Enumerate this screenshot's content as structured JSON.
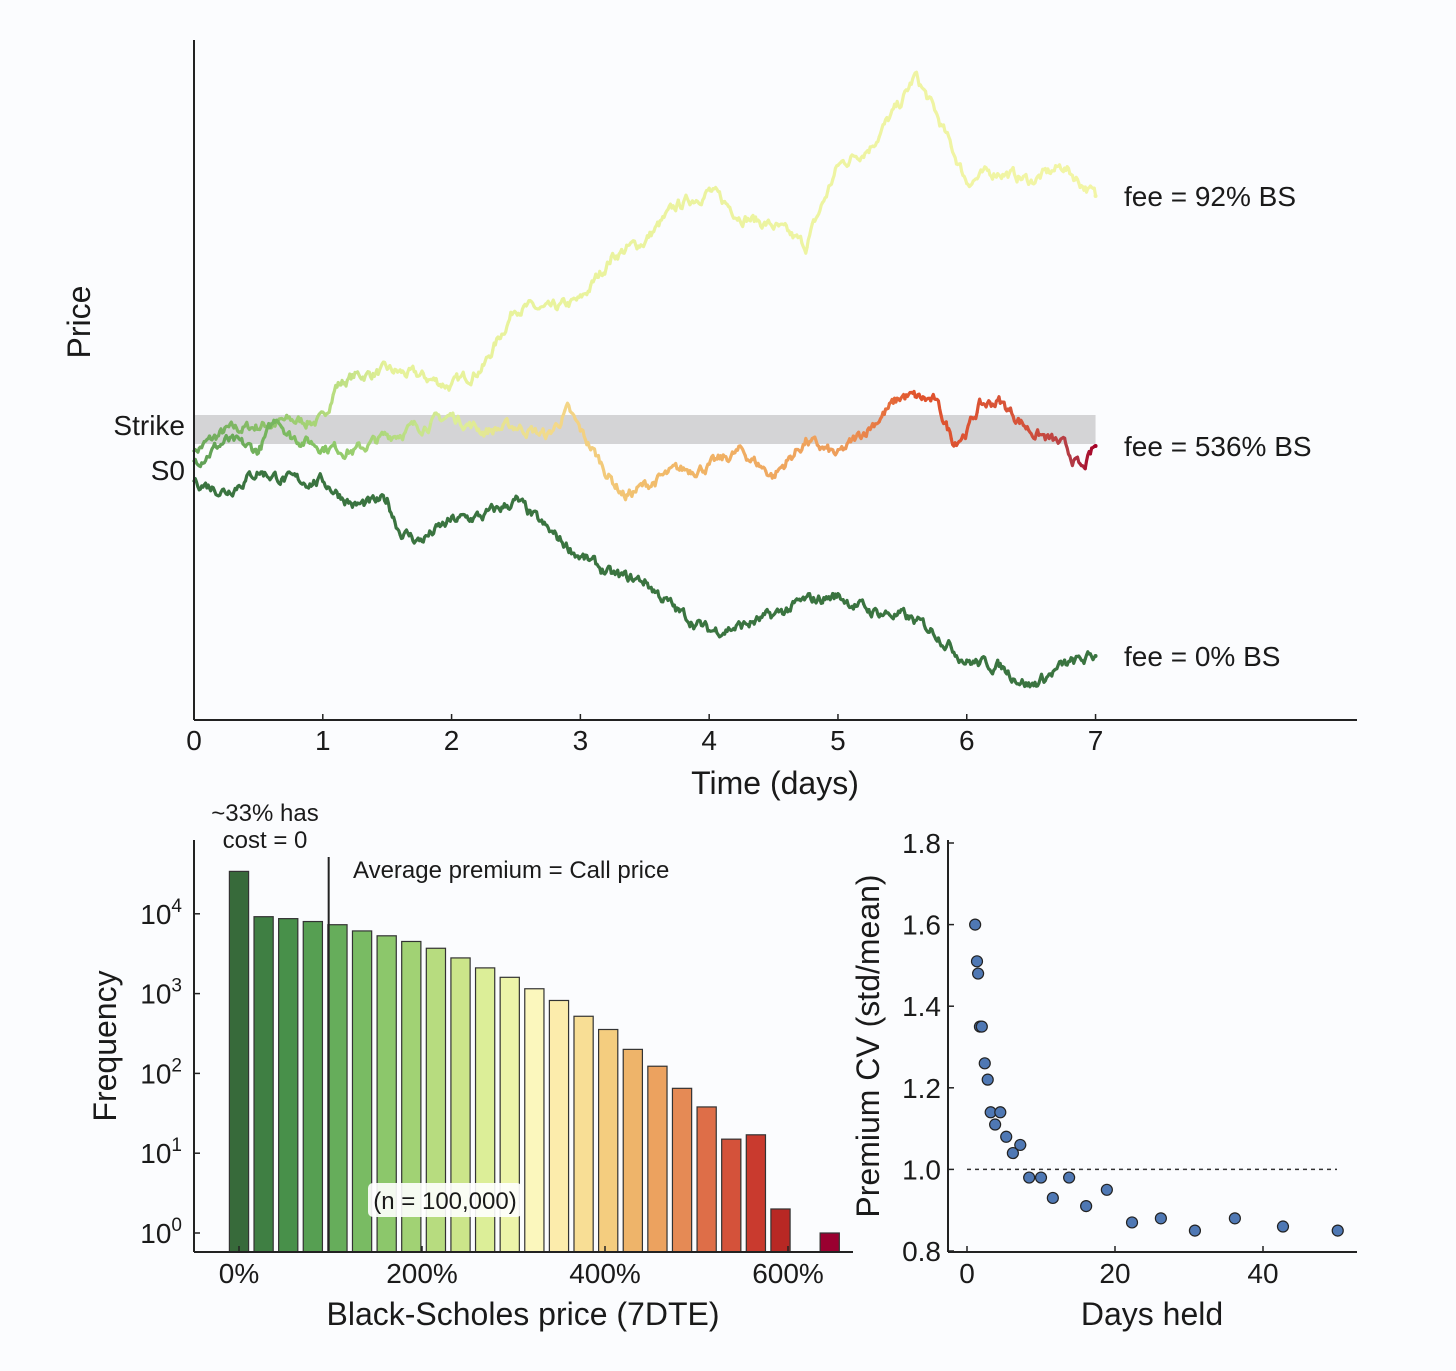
{
  "chart_data": [
    {
      "type": "line",
      "title": "",
      "xlabel": "Time (days)",
      "ylabel": "Price",
      "xlim": [
        0,
        9.03
      ],
      "ylim": [
        75,
        143
      ],
      "xticks": [
        "0",
        "1",
        "2",
        "3",
        "4",
        "5",
        "6",
        "7"
      ],
      "ytick_labels": {
        "strike": "Strike",
        "s0": "S0"
      },
      "strike_value": 104.5,
      "strike_band": [
        102.6,
        105.5
      ],
      "s0_value": 100,
      "series": [
        {
          "name": "fee = 92% BS",
          "t": [
            0,
            0.25,
            0.5,
            0.75,
            1,
            1.1,
            1.25,
            1.5,
            1.75,
            2,
            2.25,
            2.5,
            2.75,
            3,
            3.25,
            3.5,
            3.75,
            4,
            4.25,
            4.5,
            4.75,
            5,
            5.25,
            5.5,
            5.6,
            5.75,
            6,
            6.25,
            6.5,
            6.75,
            7
          ],
          "price": [
            101.9,
            103.9,
            104.4,
            104.9,
            104.9,
            108.4,
            109.4,
            109.9,
            109.4,
            108.4,
            110.4,
            116.4,
            115.9,
            116.9,
            121.4,
            122.9,
            126.4,
            127.9,
            125.4,
            124.4,
            122.4,
            130.4,
            132.4,
            136.9,
            139.4,
            135.9,
            128.9,
            129.9,
            128.9,
            130.4,
            127.4
          ],
          "color_stops": [
            {
              "t": 0,
              "color": "#6aa75a"
            },
            {
              "t": 0.9,
              "color": "#a6d476"
            },
            {
              "t": 1.5,
              "color": "#e6f29a"
            },
            {
              "t": 7,
              "color": "#f2f5a6"
            }
          ]
        },
        {
          "name": "fee = 536% BS",
          "t": [
            0,
            0.25,
            0.5,
            0.65,
            0.75,
            1,
            1.25,
            1.5,
            1.75,
            2,
            2.25,
            2.5,
            2.75,
            2.9,
            3,
            3.25,
            3.35,
            3.5,
            3.75,
            4,
            4.25,
            4.5,
            4.75,
            5,
            5.25,
            5.5,
            5.75,
            5.9,
            6,
            6.1,
            6.25,
            6.5,
            6.75,
            6.9,
            7
          ],
          "price": [
            100.9,
            102.9,
            101.9,
            105.4,
            103.4,
            102.4,
            101.9,
            103.4,
            104.4,
            105.4,
            103.9,
            104.4,
            103.4,
            105.9,
            103.9,
            98.9,
            97.4,
            98.4,
            99.9,
            100.4,
            101.9,
            99.4,
            102.9,
            101.4,
            104.4,
            107.4,
            106.9,
            102.9,
            103.9,
            106.4,
            106.9,
            103.9,
            102.4,
            99.9,
            102.4
          ],
          "color_stops": [
            {
              "t": 0,
              "color": "#5e9e55"
            },
            {
              "t": 1,
              "color": "#88c665"
            },
            {
              "t": 2,
              "color": "#dcee98"
            },
            {
              "t": 2.8,
              "color": "#f3d88a"
            },
            {
              "t": 3.5,
              "color": "#f1bd6c"
            },
            {
              "t": 5,
              "color": "#ee9d5a"
            },
            {
              "t": 5.6,
              "color": "#e0522c"
            },
            {
              "t": 6.4,
              "color": "#d6543a"
            },
            {
              "t": 6.8,
              "color": "#b23a45"
            },
            {
              "t": 7,
              "color": "#a50026"
            }
          ]
        },
        {
          "name": "fee = 0% BS",
          "t": [
            0,
            0.25,
            0.5,
            0.75,
            1,
            1.25,
            1.5,
            1.6,
            1.75,
            2,
            2.25,
            2.5,
            2.75,
            3,
            3.25,
            3.5,
            3.75,
            4,
            4.25,
            4.5,
            4.75,
            5,
            5.25,
            5.5,
            5.75,
            6,
            6.25,
            6.5,
            6.75,
            7
          ],
          "price": [
            98.9,
            97.9,
            99.9,
            98.9,
            98.9,
            96.4,
            96.9,
            93.9,
            92.9,
            94.9,
            95.4,
            96.9,
            93.9,
            91.4,
            89.4,
            88.9,
            85.9,
            83.9,
            84.4,
            85.4,
            86.9,
            87.4,
            85.9,
            85.4,
            83.9,
            80.9,
            80.4,
            78.4,
            80.4,
            81.4
          ],
          "color_stops": [
            {
              "t": 0,
              "color": "#3a7440"
            },
            {
              "t": 7,
              "color": "#3a7440"
            }
          ]
        }
      ]
    },
    {
      "type": "bar",
      "title": "",
      "xlabel": "Black-Scholes price (7DTE)",
      "ylabel": "Frequency",
      "yscale": "log",
      "ylim": [
        0.5,
        100000
      ],
      "xlim": [
        -49,
        671
      ],
      "xtick_values": [
        0,
        200,
        400,
        600
      ],
      "xtick_labels": [
        "0%",
        "200%",
        "400%",
        "600%"
      ],
      "ytick_labels": [
        {
          "base": "10",
          "exp": "0"
        },
        {
          "base": "10",
          "exp": "1"
        },
        {
          "base": "10",
          "exp": "2"
        },
        {
          "base": "10",
          "exp": "3"
        },
        {
          "base": "10",
          "exp": "4"
        }
      ],
      "bin_width_pct": 26.9,
      "bin_centers_pct": [
        0,
        26.9,
        53.8,
        80.7,
        107.6,
        134.5,
        161.4,
        188.3,
        215.2,
        242.1,
        269,
        295.9,
        322.8,
        349.7,
        376.6,
        403.5,
        430.4,
        457.3,
        484.2,
        511.1,
        538,
        564.9,
        591.8,
        618.7,
        645.6
      ],
      "values": [
        34000,
        9200,
        8700,
        8000,
        7300,
        6100,
        5300,
        4500,
        3700,
        2800,
        2100,
        1600,
        1150,
        820,
        520,
        355,
        200,
        123,
        65,
        38,
        15,
        17,
        2,
        0,
        1
      ],
      "colors": [
        "#376a3a",
        "#3f7f43",
        "#48904a",
        "#569f52",
        "#66ad5b",
        "#79bb63",
        "#8cc76b",
        "#a1d274",
        "#b7dc7f",
        "#cbe58a",
        "#dcee98",
        "#ecf4a9",
        "#fbf7bd",
        "#fcecac",
        "#f8de95",
        "#f4cd7f",
        "#eeb46a",
        "#eca25f",
        "#e58a55",
        "#de6e48",
        "#d4523a",
        "#c93a2e",
        "#b82824",
        "#a5002f",
        "#9a0030"
      ],
      "annotations": {
        "zero_cost": [
          "~33% has",
          "cost = 0"
        ],
        "average_line_pct": 98,
        "average_label": "Average premium = Call price",
        "n_label": "(n = 100,000)"
      }
    },
    {
      "type": "scatter",
      "title": "",
      "xlabel": "Days held",
      "ylabel": "Premium CV (std/mean)",
      "xlim": [
        -2.6,
        52.8
      ],
      "ylim": [
        0.8,
        1.8
      ],
      "xticks": [
        "0",
        "20",
        "40"
      ],
      "yticks": [
        "0.8",
        "1.0",
        "1.2",
        "1.4",
        "1.6",
        "1.8"
      ],
      "reference_line_y": 1.0,
      "point_color": "#4f78b4",
      "x": [
        1.1,
        1.35,
        1.5,
        1.75,
        2.0,
        2.4,
        2.8,
        3.2,
        4.5,
        3.8,
        5.3,
        6.2,
        7.2,
        8.4,
        10,
        11.6,
        13.8,
        16.1,
        18.9,
        22.3,
        26.2,
        30.8,
        36.2,
        42.7,
        50.1
      ],
      "y": [
        1.6,
        1.51,
        1.48,
        1.35,
        1.35,
        1.26,
        1.22,
        1.14,
        1.14,
        1.11,
        1.08,
        1.04,
        1.06,
        0.98,
        0.98,
        0.93,
        0.98,
        0.91,
        0.95,
        0.87,
        0.88,
        0.85,
        0.88,
        0.86,
        0.85
      ]
    }
  ]
}
